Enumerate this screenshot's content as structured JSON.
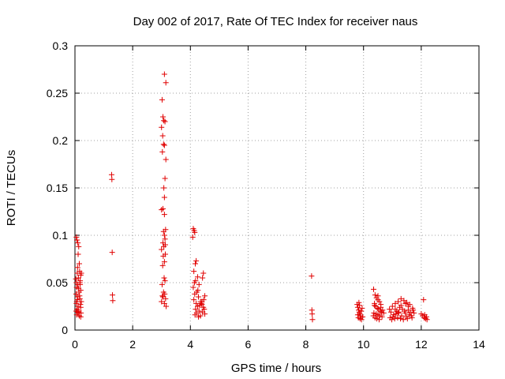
{
  "chart_data": {
    "type": "scatter",
    "title": "Day 002 of 2017, Rate Of TEC Index for receiver naus",
    "xlabel": "GPS time / hours",
    "ylabel": "ROTI / TECUs",
    "xlim": [
      0,
      14
    ],
    "ylim": [
      0,
      0.3
    ],
    "xticks": [
      0,
      2,
      4,
      6,
      8,
      10,
      12,
      14
    ],
    "xtick_labels": [
      "0",
      "2",
      "4",
      "6",
      "8",
      "10",
      "12",
      "14"
    ],
    "yticks": [
      0,
      0.05,
      0.1,
      0.15,
      0.2,
      0.25,
      0.3
    ],
    "ytick_labels": [
      "0",
      "0.05",
      "0.1",
      "0.15",
      "0.2",
      "0.25",
      "0.3"
    ],
    "grid": true,
    "marker": "+",
    "marker_color": "#e00000",
    "series": [
      {
        "name": "ROTI",
        "points": [
          [
            0.05,
            0.098
          ],
          [
            0.07,
            0.095
          ],
          [
            0.1,
            0.092
          ],
          [
            0.13,
            0.088
          ],
          [
            0.15,
            0.07
          ],
          [
            0.08,
            0.06
          ],
          [
            0.12,
            0.055
          ],
          [
            0.16,
            0.062
          ],
          [
            0.2,
            0.058
          ],
          [
            0.05,
            0.05
          ],
          [
            0.1,
            0.048
          ],
          [
            0.18,
            0.052
          ],
          [
            0.06,
            0.045
          ],
          [
            0.14,
            0.04
          ],
          [
            0.2,
            0.042
          ],
          [
            0.04,
            0.038
          ],
          [
            0.09,
            0.035
          ],
          [
            0.17,
            0.033
          ],
          [
            0.22,
            0.03
          ],
          [
            0.05,
            0.028
          ],
          [
            0.11,
            0.025
          ],
          [
            0.19,
            0.027
          ],
          [
            0.07,
            0.022
          ],
          [
            0.13,
            0.02
          ],
          [
            0.21,
            0.018
          ],
          [
            0.06,
            0.016
          ],
          [
            0.15,
            0.015
          ],
          [
            0.1,
            0.019
          ],
          [
            0.2,
            0.024
          ],
          [
            0.08,
            0.032
          ],
          [
            0.16,
            0.036
          ],
          [
            0.12,
            0.044
          ],
          [
            0.18,
            0.048
          ],
          [
            0.03,
            0.054
          ],
          [
            0.22,
            0.06
          ],
          [
            0.09,
            0.066
          ],
          [
            0.14,
            0.018
          ],
          [
            0.2,
            0.014
          ],
          [
            0.04,
            0.02
          ],
          [
            0.17,
            0.05
          ],
          [
            0.11,
            0.08
          ],
          [
            0.06,
            0.03
          ],
          [
            1.27,
            0.164
          ],
          [
            1.28,
            0.159
          ],
          [
            1.29,
            0.082
          ],
          [
            1.3,
            0.037
          ],
          [
            1.31,
            0.031
          ],
          [
            3.1,
            0.27
          ],
          [
            3.15,
            0.261
          ],
          [
            3.02,
            0.243
          ],
          [
            3.05,
            0.225
          ],
          [
            3.08,
            0.221
          ],
          [
            3.12,
            0.22
          ],
          [
            3.0,
            0.214
          ],
          [
            3.04,
            0.205
          ],
          [
            3.07,
            0.196
          ],
          [
            3.1,
            0.195
          ],
          [
            3.03,
            0.188
          ],
          [
            3.15,
            0.18
          ],
          [
            3.12,
            0.16
          ],
          [
            3.08,
            0.15
          ],
          [
            3.1,
            0.14
          ],
          [
            3.05,
            0.128
          ],
          [
            3.0,
            0.127
          ],
          [
            3.1,
            0.122
          ],
          [
            3.14,
            0.106
          ],
          [
            3.07,
            0.104
          ],
          [
            3.1,
            0.1
          ],
          [
            3.12,
            0.096
          ],
          [
            3.05,
            0.092
          ],
          [
            3.08,
            0.088
          ],
          [
            3.0,
            0.085
          ],
          [
            3.13,
            0.08
          ],
          [
            3.06,
            0.078
          ],
          [
            3.1,
            0.072
          ],
          [
            3.04,
            0.068
          ],
          [
            3.09,
            0.055
          ],
          [
            3.12,
            0.052
          ],
          [
            3.02,
            0.048
          ],
          [
            3.07,
            0.04
          ],
          [
            3.11,
            0.038
          ],
          [
            3.05,
            0.035
          ],
          [
            3.14,
            0.033
          ],
          [
            3.0,
            0.03
          ],
          [
            3.1,
            0.028
          ],
          [
            3.16,
            0.025
          ],
          [
            3.03,
            0.036
          ],
          [
            3.13,
            0.09
          ],
          [
            4.1,
            0.107
          ],
          [
            4.13,
            0.105
          ],
          [
            4.15,
            0.103
          ],
          [
            4.08,
            0.098
          ],
          [
            4.2,
            0.073
          ],
          [
            4.17,
            0.07
          ],
          [
            4.12,
            0.062
          ],
          [
            4.25,
            0.056
          ],
          [
            4.18,
            0.052
          ],
          [
            4.3,
            0.048
          ],
          [
            4.1,
            0.045
          ],
          [
            4.22,
            0.04
          ],
          [
            4.15,
            0.038
          ],
          [
            4.28,
            0.035
          ],
          [
            4.12,
            0.032
          ],
          [
            4.35,
            0.03
          ],
          [
            4.2,
            0.028
          ],
          [
            4.4,
            0.027
          ],
          [
            4.25,
            0.025
          ],
          [
            4.45,
            0.024
          ],
          [
            4.18,
            0.022
          ],
          [
            4.3,
            0.02
          ],
          [
            4.42,
            0.019
          ],
          [
            4.22,
            0.018
          ],
          [
            4.5,
            0.017
          ],
          [
            4.35,
            0.015
          ],
          [
            4.28,
            0.014
          ],
          [
            4.48,
            0.022
          ],
          [
            4.38,
            0.028
          ],
          [
            4.46,
            0.032
          ],
          [
            4.5,
            0.036
          ],
          [
            4.42,
            0.055
          ],
          [
            4.45,
            0.06
          ],
          [
            4.16,
            0.016
          ],
          [
            4.26,
            0.042
          ],
          [
            4.32,
            0.026
          ],
          [
            4.4,
            0.03
          ],
          [
            4.14,
            0.05
          ],
          [
            8.2,
            0.057
          ],
          [
            8.21,
            0.021
          ],
          [
            8.22,
            0.017
          ],
          [
            8.23,
            0.011
          ],
          [
            9.78,
            0.027
          ],
          [
            9.8,
            0.024
          ],
          [
            9.83,
            0.021
          ],
          [
            9.85,
            0.019
          ],
          [
            9.87,
            0.017
          ],
          [
            9.9,
            0.015
          ],
          [
            9.82,
            0.013
          ],
          [
            9.88,
            0.012
          ],
          [
            9.92,
            0.02
          ],
          [
            9.95,
            0.023
          ],
          [
            9.86,
            0.026
          ],
          [
            9.93,
            0.011
          ],
          [
            9.8,
            0.016
          ],
          [
            9.97,
            0.014
          ],
          [
            9.84,
            0.029
          ],
          [
            10.35,
            0.043
          ],
          [
            10.4,
            0.037
          ],
          [
            10.45,
            0.034
          ],
          [
            10.5,
            0.032
          ],
          [
            10.55,
            0.03
          ],
          [
            10.38,
            0.028
          ],
          [
            10.6,
            0.027
          ],
          [
            10.42,
            0.025
          ],
          [
            10.48,
            0.023
          ],
          [
            10.52,
            0.022
          ],
          [
            10.58,
            0.02
          ],
          [
            10.62,
            0.019
          ],
          [
            10.36,
            0.018
          ],
          [
            10.44,
            0.017
          ],
          [
            10.5,
            0.016
          ],
          [
            10.56,
            0.015
          ],
          [
            10.64,
            0.014
          ],
          [
            10.4,
            0.013
          ],
          [
            10.46,
            0.012
          ],
          [
            10.54,
            0.011
          ],
          [
            10.6,
            0.024
          ],
          [
            10.66,
            0.021
          ],
          [
            10.38,
            0.026
          ],
          [
            10.7,
            0.018
          ],
          [
            10.34,
            0.015
          ],
          [
            10.5,
            0.036
          ],
          [
            10.9,
            0.022
          ],
          [
            10.95,
            0.019
          ],
          [
            11.0,
            0.025
          ],
          [
            11.05,
            0.016
          ],
          [
            11.1,
            0.028
          ],
          [
            11.15,
            0.02
          ],
          [
            11.2,
            0.03
          ],
          [
            11.25,
            0.024
          ],
          [
            11.3,
            0.033
          ],
          [
            11.35,
            0.022
          ],
          [
            11.4,
            0.031
          ],
          [
            11.45,
            0.018
          ],
          [
            11.5,
            0.029
          ],
          [
            11.55,
            0.021
          ],
          [
            11.6,
            0.027
          ],
          [
            11.65,
            0.015
          ],
          [
            11.7,
            0.023
          ],
          [
            10.92,
            0.013
          ],
          [
            10.98,
            0.011
          ],
          [
            11.02,
            0.014
          ],
          [
            11.08,
            0.012
          ],
          [
            11.12,
            0.017
          ],
          [
            11.18,
            0.013
          ],
          [
            11.22,
            0.019
          ],
          [
            11.28,
            0.012
          ],
          [
            11.32,
            0.015
          ],
          [
            11.38,
            0.011
          ],
          [
            11.42,
            0.02
          ],
          [
            11.48,
            0.014
          ],
          [
            11.52,
            0.012
          ],
          [
            11.58,
            0.016
          ],
          [
            11.62,
            0.019
          ],
          [
            11.68,
            0.013
          ],
          [
            11.72,
            0.021
          ],
          [
            11.75,
            0.018
          ],
          [
            11.1,
            0.022
          ],
          [
            11.3,
            0.026
          ],
          [
            11.45,
            0.028
          ],
          [
            11.2,
            0.018
          ],
          [
            11.55,
            0.025
          ],
          [
            12.0,
            0.017
          ],
          [
            12.05,
            0.015
          ],
          [
            12.1,
            0.013
          ],
          [
            12.15,
            0.012
          ],
          [
            12.2,
            0.011
          ],
          [
            12.08,
            0.032
          ],
          [
            12.12,
            0.016
          ],
          [
            12.18,
            0.014
          ]
        ]
      }
    ]
  }
}
